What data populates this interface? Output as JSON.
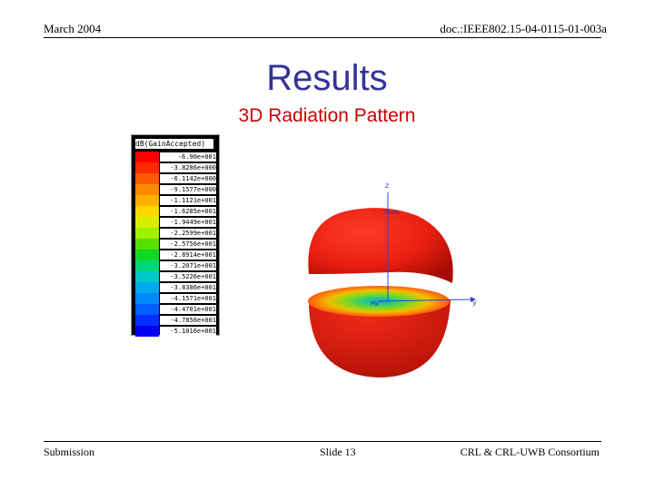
{
  "header": {
    "date": "March 2004",
    "doc_id": "doc.:IEEE802.15-04-0115-01-003a"
  },
  "slide": {
    "title": "Results",
    "subtitle": "3D Radiation Pattern"
  },
  "legend": {
    "title": "dB(GainAccepted)",
    "entries": [
      {
        "value": "-6.90e+001",
        "color": "#ff0000"
      },
      {
        "value": "-3.8286e+000",
        "color": "#ff2a00"
      },
      {
        "value": "-6.1142e+000",
        "color": "#ff5a00"
      },
      {
        "value": "-9.1577e+000",
        "color": "#ff8a00"
      },
      {
        "value": "-1.1121e+001",
        "color": "#ffb000"
      },
      {
        "value": "-1.6285e+001",
        "color": "#ffd800"
      },
      {
        "value": "-1.9449e+001",
        "color": "#d8ee00"
      },
      {
        "value": "-2.2599e+001",
        "color": "#a0f000"
      },
      {
        "value": "-2.5756e+001",
        "color": "#5ae000"
      },
      {
        "value": "-2.8914e+001",
        "color": "#10d820"
      },
      {
        "value": "-3.2071e+001",
        "color": "#00d878"
      },
      {
        "value": "-3.5226e+001",
        "color": "#00c8c8"
      },
      {
        "value": "-3.8386e+001",
        "color": "#00a8f0"
      },
      {
        "value": "-4.1571e+001",
        "color": "#0088ff"
      },
      {
        "value": "-4.4701e+001",
        "color": "#0060ff"
      },
      {
        "value": "-4.7856e+001",
        "color": "#0030ff"
      },
      {
        "value": "-5.1016e+001",
        "color": "#0000f0"
      }
    ]
  },
  "plot": {
    "axis_z": "z",
    "axis_theta": "Theta",
    "axis_y": "y",
    "axis_phi": "Phi"
  },
  "footer": {
    "left": "Submission",
    "center": "Slide 13",
    "right": "CRL & CRL-UWB Consortium"
  }
}
